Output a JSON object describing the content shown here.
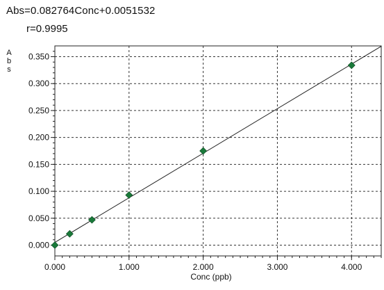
{
  "equation": "Abs=0.082764Conc+0.0051532",
  "r_text": "r=0.9995",
  "chart_data": {
    "type": "scatter",
    "title": "",
    "xlabel": "Conc (ppb)",
    "ylabel": "Abs",
    "xlim": [
      0,
      4.4
    ],
    "ylim": [
      -0.02,
      0.37
    ],
    "x_ticks": [
      0,
      1,
      2,
      3,
      4
    ],
    "x_tick_labels": [
      "0.000",
      "1.000",
      "2.000",
      "3.000",
      "4.000"
    ],
    "y_ticks": [
      0,
      0.05,
      0.1,
      0.15,
      0.2,
      0.25,
      0.3,
      0.35
    ],
    "y_tick_labels": [
      "0.000",
      "0.050",
      "0.100",
      "0.150",
      "0.200",
      "0.250",
      "0.300",
      "0.350"
    ],
    "grid": true,
    "grid_style": "dashed",
    "points": [
      {
        "x": 0.0,
        "y": 0.0
      },
      {
        "x": 0.2,
        "y": 0.021
      },
      {
        "x": 0.5,
        "y": 0.047
      },
      {
        "x": 1.0,
        "y": 0.093
      },
      {
        "x": 2.0,
        "y": 0.175
      },
      {
        "x": 4.0,
        "y": 0.334
      }
    ],
    "fit_line": {
      "slope": 0.082764,
      "intercept": 0.0051532
    },
    "colors": {
      "marker": "#1a7a3a",
      "line": "#222222",
      "grid": "#333333",
      "frame": "#222222"
    }
  }
}
